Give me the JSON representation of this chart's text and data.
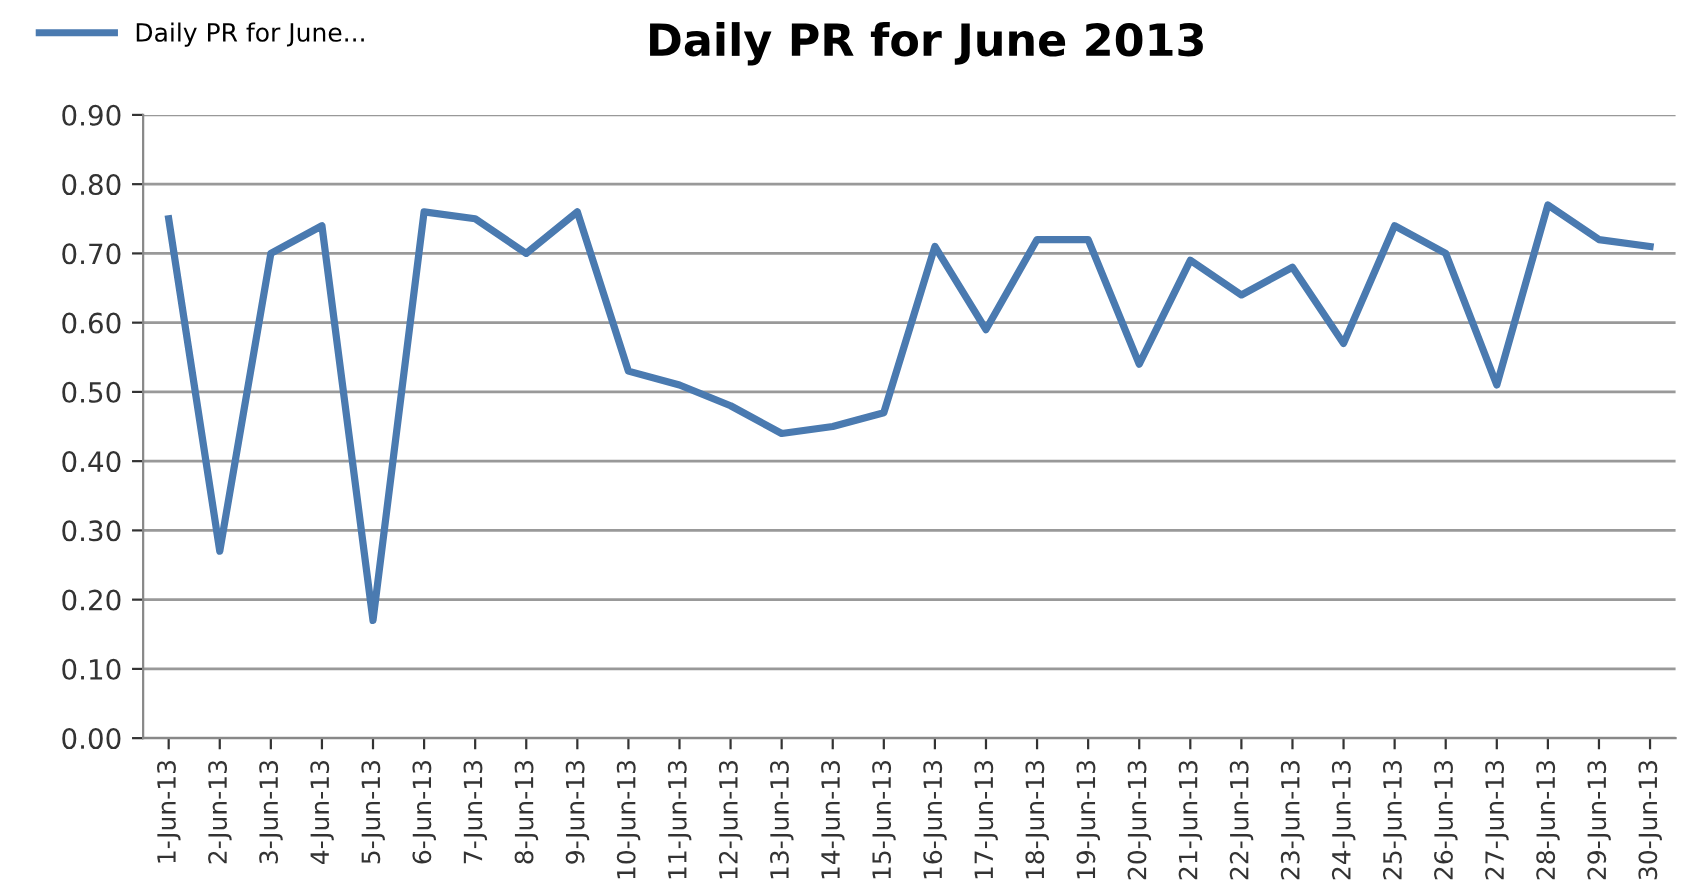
{
  "chart_data": {
    "type": "line",
    "title": "Daily PR for June 2013",
    "categories": [
      "1-Jun-13",
      "2-Jun-13",
      "3-Jun-13",
      "4-Jun-13",
      "5-Jun-13",
      "6-Jun-13",
      "7-Jun-13",
      "8-Jun-13",
      "9-Jun-13",
      "10-Jun-13",
      "11-Jun-13",
      "12-Jun-13",
      "13-Jun-13",
      "14-Jun-13",
      "15-Jun-13",
      "16-Jun-13",
      "17-Jun-13",
      "18-Jun-13",
      "19-Jun-13",
      "20-Jun-13",
      "21-Jun-13",
      "22-Jun-13",
      "23-Jun-13",
      "24-Jun-13",
      "25-Jun-13",
      "26-Jun-13",
      "27-Jun-13",
      "28-Jun-13",
      "29-Jun-13",
      "30-Jun-13"
    ],
    "series": [
      {
        "name": "Daily PR for June...",
        "color": "#4a7ab0",
        "values": [
          0.75,
          0.27,
          0.7,
          0.74,
          0.17,
          0.76,
          0.75,
          0.7,
          0.76,
          0.53,
          0.51,
          0.48,
          0.44,
          0.45,
          0.47,
          0.71,
          0.59,
          0.72,
          0.72,
          0.54,
          0.69,
          0.64,
          0.68,
          0.57,
          0.74,
          0.7,
          0.51,
          0.77,
          0.72,
          0.71
        ]
      }
    ],
    "ylim": [
      0,
      0.9
    ],
    "yticks": [
      {
        "value": 0,
        "label": "0.00"
      },
      {
        "value": 0.1,
        "label": "0.10"
      },
      {
        "value": 0.2,
        "label": "0.20"
      },
      {
        "value": 0.3,
        "label": "0.30"
      },
      {
        "value": 0.4,
        "label": "0.40"
      },
      {
        "value": 0.5,
        "label": "0.50"
      },
      {
        "value": 0.6,
        "label": "0.60"
      },
      {
        "value": 0.7,
        "label": "0.70"
      },
      {
        "value": 0.8,
        "label": "0.80"
      },
      {
        "value": 0.9,
        "label": "0.90"
      }
    ],
    "grid": "y",
    "legend": "top left",
    "marker": "none",
    "line_style": "solid"
  }
}
